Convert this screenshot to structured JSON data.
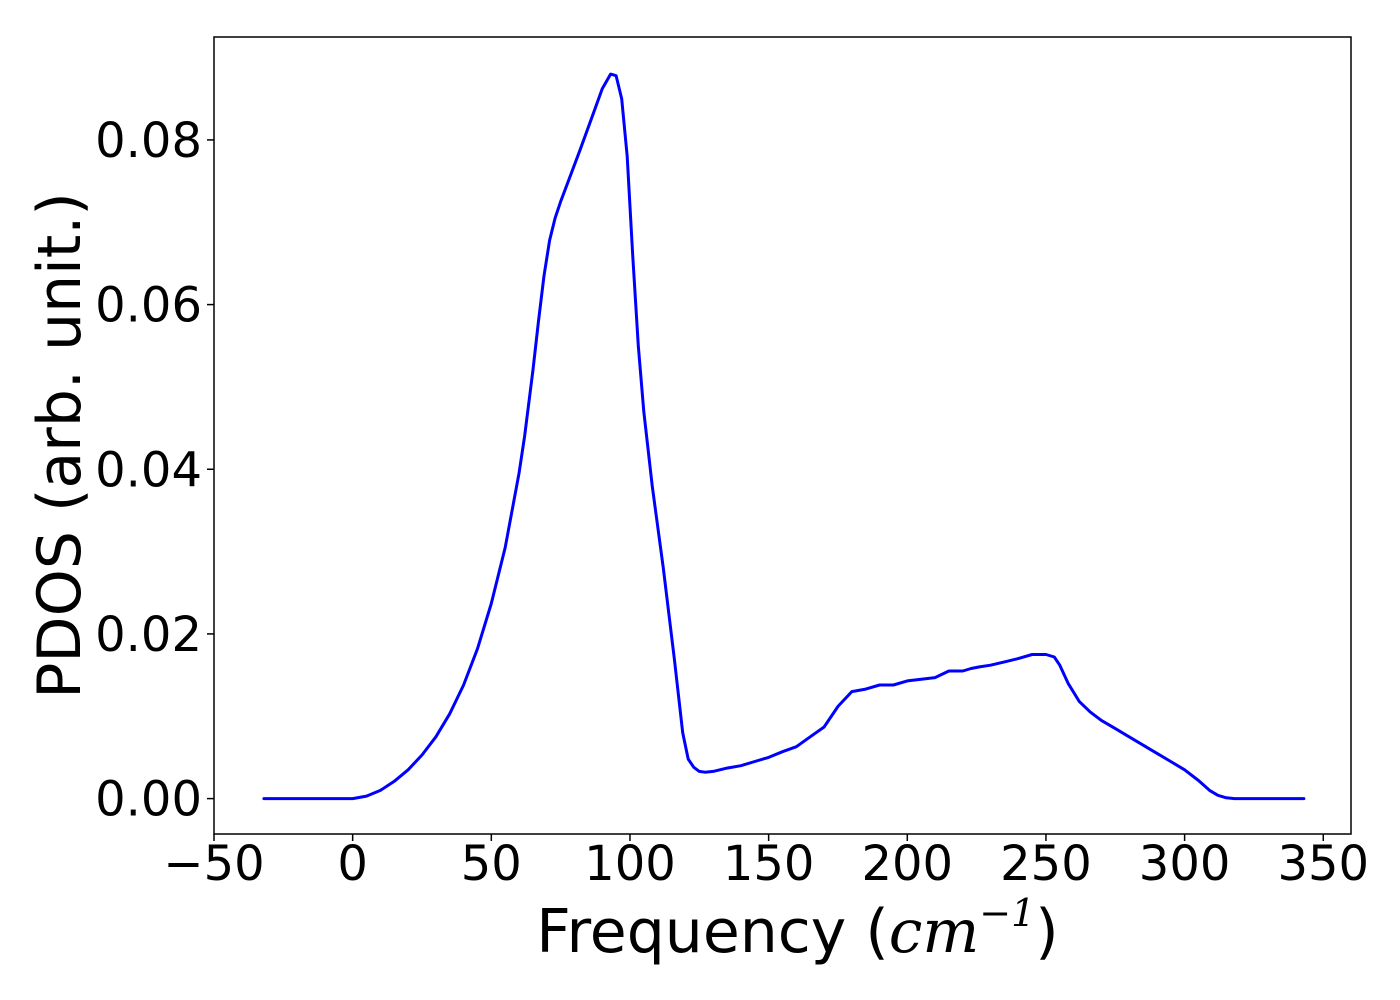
{
  "chart_data": {
    "type": "line",
    "title": "",
    "xlabel": "Frequency (cm⁻¹)",
    "xlabel_parts": {
      "prefix": "Frequency (",
      "unit_base": "cm",
      "unit_exp": "−1",
      "suffix": ")"
    },
    "ylabel": "PDOS (arb. unit.)",
    "xlim": [
      -50,
      360
    ],
    "ylim": [
      -0.0043,
      0.0925
    ],
    "xticks": [
      -50,
      0,
      50,
      100,
      150,
      200,
      250,
      300,
      350
    ],
    "xtick_labels": [
      "−50",
      "0",
      "50",
      "100",
      "150",
      "200",
      "250",
      "300",
      "350"
    ],
    "yticks": [
      0.0,
      0.02,
      0.04,
      0.06,
      0.08
    ],
    "ytick_labels": [
      "0.00",
      "0.02",
      "0.04",
      "0.06",
      "0.08"
    ],
    "grid": false,
    "series": [
      {
        "color": "#0000ff",
        "x": [
          -32,
          -10,
          0,
          5,
          10,
          15,
          20,
          25,
          30,
          35,
          40,
          45,
          50,
          55,
          60,
          62,
          65,
          67,
          69,
          71,
          73,
          75,
          78,
          82,
          86,
          90,
          93,
          95,
          97,
          99,
          101,
          103,
          105,
          108,
          112,
          116,
          119,
          121,
          123,
          125,
          127,
          130,
          135,
          140,
          145,
          150,
          155,
          160,
          165,
          170,
          175,
          180,
          185,
          190,
          195,
          200,
          205,
          210,
          215,
          220,
          223,
          226,
          230,
          235,
          240,
          245,
          250,
          253,
          255,
          258,
          262,
          266,
          270,
          275,
          280,
          285,
          290,
          295,
          300,
          305,
          309,
          312,
          315,
          318,
          325,
          343
        ],
        "y": [
          0,
          0,
          0,
          0.0003,
          0.001,
          0.0021,
          0.0035,
          0.0053,
          0.0075,
          0.0103,
          0.0138,
          0.0182,
          0.0237,
          0.0305,
          0.0395,
          0.044,
          0.052,
          0.058,
          0.0635,
          0.0678,
          0.0705,
          0.0725,
          0.0752,
          0.0788,
          0.0825,
          0.0862,
          0.088,
          0.0878,
          0.085,
          0.078,
          0.066,
          0.055,
          0.047,
          0.038,
          0.028,
          0.017,
          0.008,
          0.0048,
          0.0038,
          0.0033,
          0.0032,
          0.0033,
          0.0037,
          0.004,
          0.0045,
          0.005,
          0.0057,
          0.0063,
          0.0075,
          0.0087,
          0.0112,
          0.013,
          0.0133,
          0.0138,
          0.0138,
          0.0143,
          0.0145,
          0.0147,
          0.0155,
          0.0155,
          0.0158,
          0.016,
          0.0162,
          0.0166,
          0.017,
          0.0175,
          0.0175,
          0.0172,
          0.0162,
          0.014,
          0.0118,
          0.0105,
          0.0095,
          0.0085,
          0.0075,
          0.0065,
          0.0055,
          0.0045,
          0.0035,
          0.0022,
          0.001,
          0.0004,
          0.0001,
          0,
          0,
          0
        ]
      }
    ]
  }
}
